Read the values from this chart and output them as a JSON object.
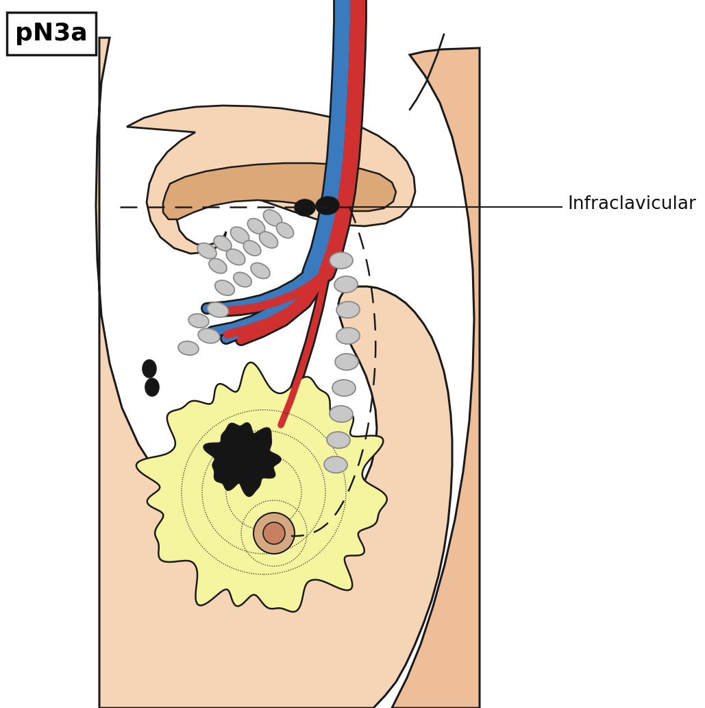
{
  "title": "pN3a",
  "label_infraclavicular": "Infraclavicular",
  "bg_color": "#ffffff",
  "skin_light": "#f5d5b5",
  "skin_medium": "#edbe98",
  "breast_yellow": "#f5f5a0",
  "node_gray_fc": "#c8c8c8",
  "node_gray_ec": "#888888",
  "node_black": "#151515",
  "vessel_blue": "#3a7abf",
  "vessel_red": "#d03030",
  "outline": "#1a1a1a",
  "nipple_outer": "#d4987a",
  "nipple_inner": "#c07860",
  "clav_color": "#dca878"
}
